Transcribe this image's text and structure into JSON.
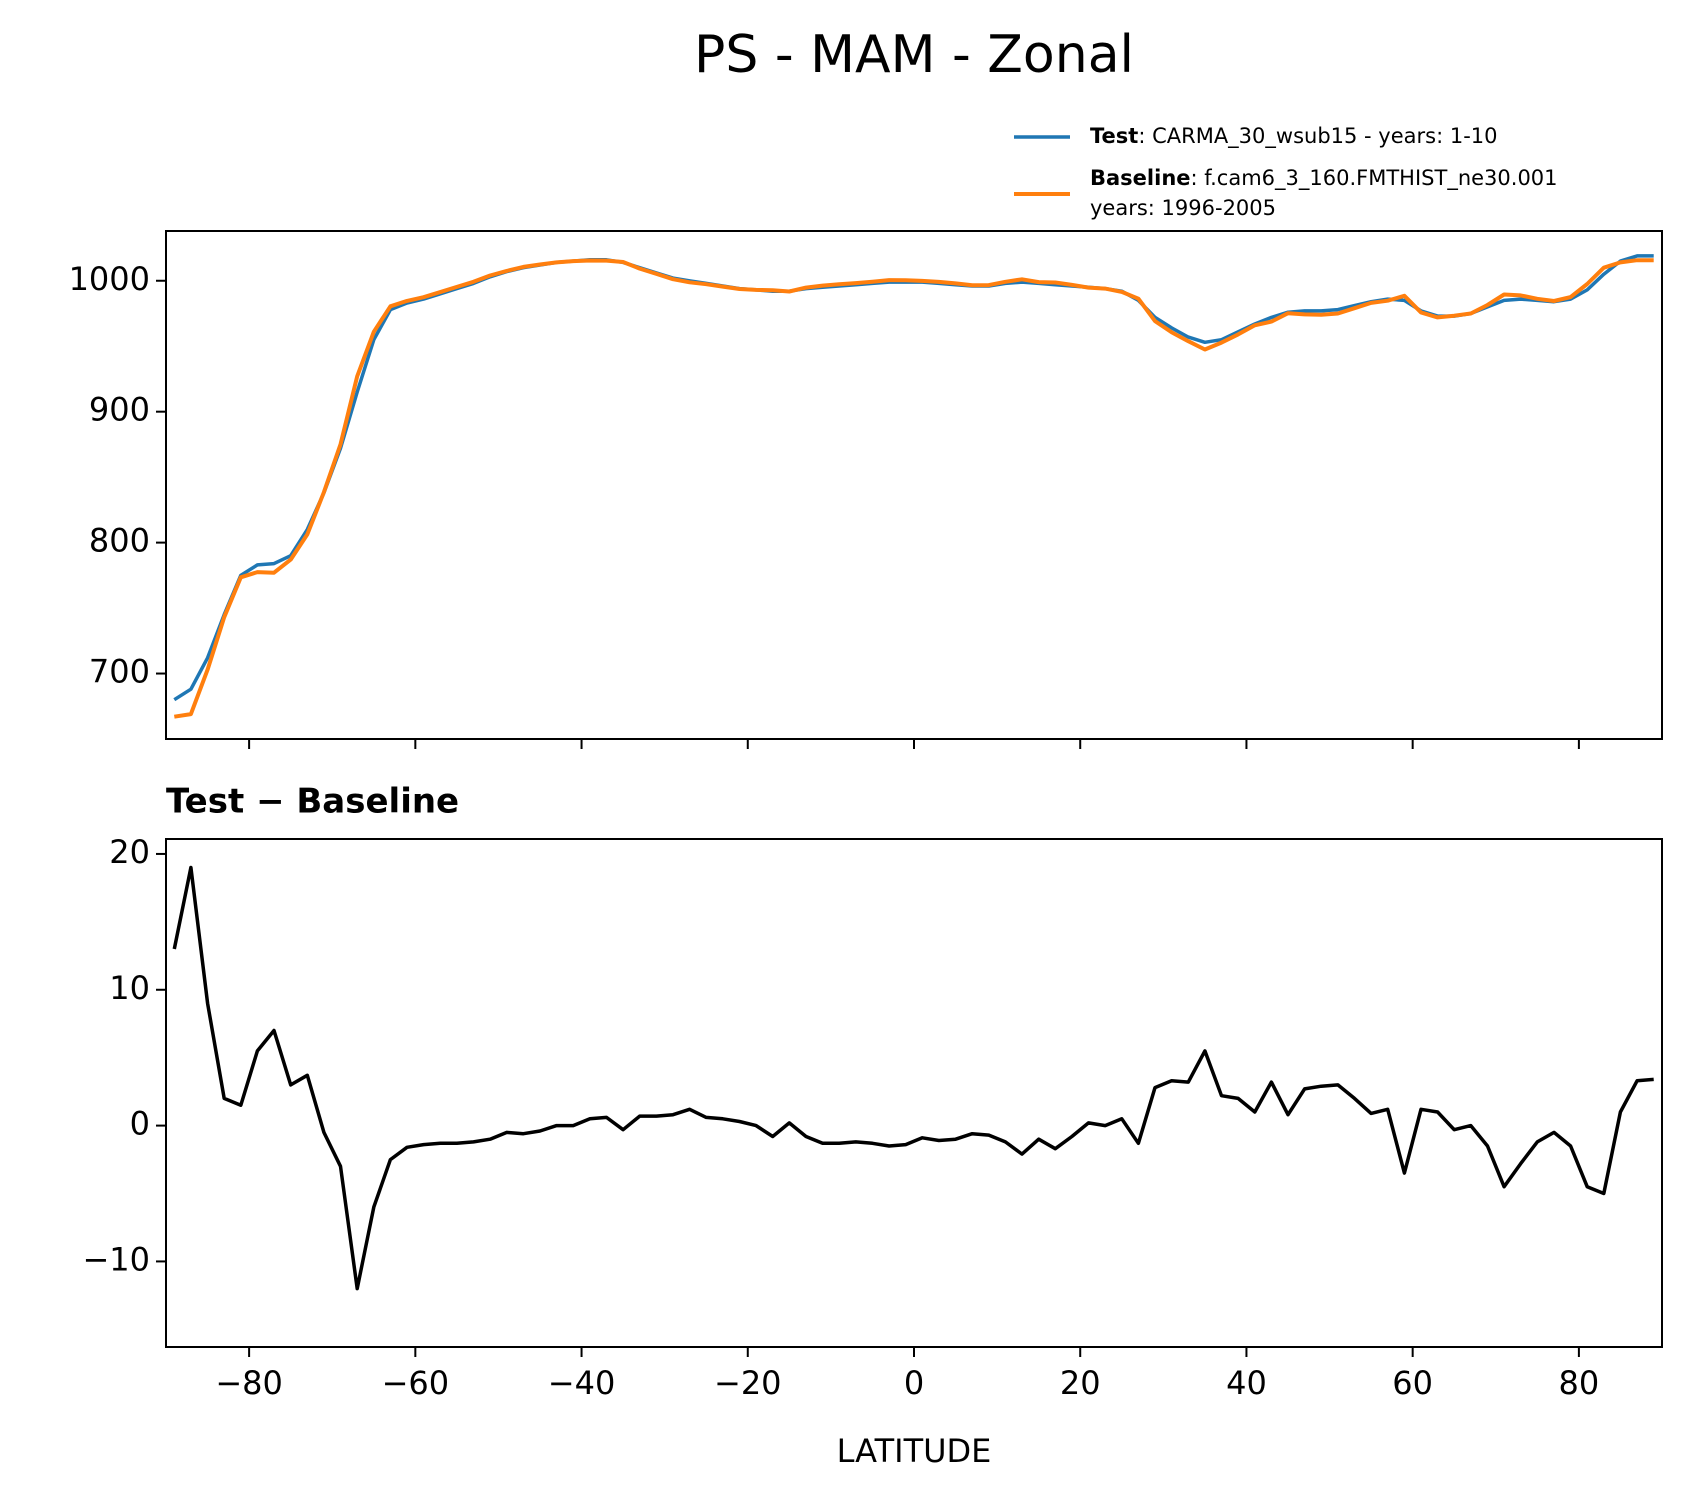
{
  "title": "PS - MAM - Zonal",
  "chart_data": [
    {
      "type": "line",
      "x": [
        -89,
        -87,
        -85,
        -83,
        -81,
        -79,
        -77,
        -75,
        -73,
        -71,
        -69,
        -67,
        -65,
        -63,
        -61,
        -59,
        -57,
        -55,
        -53,
        -51,
        -49,
        -47,
        -45,
        -43,
        -41,
        -39,
        -37,
        -35,
        -33,
        -31,
        -29,
        -27,
        -25,
        -23,
        -21,
        -19,
        -17,
        -15,
        -13,
        -11,
        -9,
        -7,
        -5,
        -3,
        -1,
        1,
        3,
        5,
        7,
        9,
        11,
        13,
        15,
        17,
        19,
        21,
        23,
        25,
        27,
        29,
        31,
        33,
        35,
        37,
        39,
        41,
        43,
        45,
        47,
        49,
        51,
        53,
        55,
        57,
        59,
        61,
        63,
        65,
        67,
        69,
        71,
        73,
        75,
        77,
        79,
        81,
        83,
        85,
        87,
        89
      ],
      "series": [
        {
          "name": "Test",
          "detail": [
            ": CARMA_30_wsub15 - years: 1-10"
          ],
          "color": "#1f77b4",
          "values": [
            680,
            688,
            712,
            745,
            775,
            783,
            784,
            790,
            810,
            838,
            872,
            915,
            955,
            978,
            983,
            986,
            990,
            994,
            998,
            1003,
            1007,
            1010,
            1012,
            1014,
            1015,
            1016,
            1016,
            1014,
            1010,
            1006,
            1002,
            1000,
            998,
            996,
            994,
            993,
            992,
            992,
            994,
            995,
            996,
            997,
            998,
            999,
            999,
            999,
            998,
            997,
            996,
            996,
            998,
            999,
            998,
            997,
            996,
            995,
            994,
            992,
            985,
            972,
            964,
            957,
            953,
            955,
            961,
            967,
            972,
            976,
            977,
            977,
            978,
            981,
            984,
            986,
            985,
            977,
            973,
            973,
            975,
            980,
            985,
            986,
            985,
            984,
            986,
            993,
            1005,
            1015,
            1019,
            1019
          ]
        },
        {
          "name": "Baseline",
          "detail": [
            ": f.cam6_3_160.FMTHIST_ne30.001",
            "years: 1996-2005"
          ],
          "color": "#ff7f0e",
          "values": [
            667,
            669,
            703,
            743,
            773.5,
            777.5,
            777,
            787,
            806.3,
            838.5,
            875,
            927,
            961,
            980.5,
            984.6,
            987.4,
            991.3,
            995.3,
            999.2,
            1004,
            1007.5,
            1010.6,
            1012.4,
            1014,
            1015,
            1015.5,
            1015.4,
            1014.3,
            1009.3,
            1005.3,
            1001.2,
            998.8,
            997.4,
            995.5,
            993.7,
            993,
            992.8,
            991.8,
            994.8,
            996.3,
            997.3,
            998.2,
            999.3,
            1000.5,
            1000.4,
            999.9,
            999.1,
            998,
            996.6,
            996.7,
            999.2,
            1001.1,
            999,
            998.7,
            996.8,
            994.8,
            994,
            991.5,
            986.3,
            969.2,
            960.7,
            953.8,
            947.5,
            952.8,
            959,
            966,
            968.8,
            975.2,
            974.3,
            974.1,
            975,
            979,
            983.1,
            984.8,
            988.5,
            975.8,
            972,
            973.3,
            975,
            981.5,
            989.5,
            988.8,
            986.2,
            984.5,
            987.5,
            997.5,
            1010,
            1014,
            1015.7,
            1015.6
          ]
        }
      ],
      "xlim": [
        -90,
        90
      ],
      "ylim": [
        650,
        1038
      ],
      "yticks": [
        700,
        800,
        900,
        1000
      ]
    },
    {
      "type": "line",
      "title": "Test − Baseline",
      "xlabel": "LATITUDE",
      "x": [
        -89,
        -87,
        -85,
        -83,
        -81,
        -79,
        -77,
        -75,
        -73,
        -71,
        -69,
        -67,
        -65,
        -63,
        -61,
        -59,
        -57,
        -55,
        -53,
        -51,
        -49,
        -47,
        -45,
        -43,
        -41,
        -39,
        -37,
        -35,
        -33,
        -31,
        -29,
        -27,
        -25,
        -23,
        -21,
        -19,
        -17,
        -15,
        -13,
        -11,
        -9,
        -7,
        -5,
        -3,
        -1,
        1,
        3,
        5,
        7,
        9,
        11,
        13,
        15,
        17,
        19,
        21,
        23,
        25,
        27,
        29,
        31,
        33,
        35,
        37,
        39,
        41,
        43,
        45,
        47,
        49,
        51,
        53,
        55,
        57,
        59,
        61,
        63,
        65,
        67,
        69,
        71,
        73,
        75,
        77,
        79,
        81,
        83,
        85,
        87,
        89
      ],
      "series": [
        {
          "color": "#000000",
          "values": [
            13,
            19,
            9,
            2,
            1.5,
            5.5,
            7,
            3,
            3.7,
            -0.5,
            -3,
            -12,
            -6,
            -2.5,
            -1.6,
            -1.4,
            -1.3,
            -1.3,
            -1.2,
            -1,
            -0.5,
            -0.6,
            -0.4,
            0,
            0,
            0.5,
            0.6,
            -0.3,
            0.7,
            0.7,
            0.8,
            1.2,
            0.6,
            0.5,
            0.3,
            0,
            -0.8,
            0.2,
            -0.8,
            -1.3,
            -1.3,
            -1.2,
            -1.3,
            -1.5,
            -1.4,
            -0.9,
            -1.1,
            -1,
            -0.6,
            -0.7,
            -1.2,
            -2.1,
            -1,
            -1.7,
            -0.8,
            0.2,
            0,
            0.5,
            -1.3,
            2.8,
            3.3,
            3.2,
            5.5,
            2.2,
            2,
            1,
            3.2,
            0.8,
            2.7,
            2.9,
            3,
            2,
            0.9,
            1.2,
            -3.5,
            1.2,
            1,
            -0.3,
            0,
            -1.5,
            -4.5,
            -2.8,
            -1.2,
            -0.5,
            -1.5,
            -4.5,
            -5,
            1,
            3.3,
            3.4
          ]
        }
      ],
      "xlim": [
        -90,
        90
      ],
      "ylim": [
        -16.3,
        21.1
      ],
      "xticks": [
        {
          "value": -80,
          "label": "−80"
        },
        {
          "value": -60,
          "label": "−60"
        },
        {
          "value": -40,
          "label": "−40"
        },
        {
          "value": -20,
          "label": "−20"
        },
        0,
        20,
        40,
        60,
        80
      ],
      "yticks": [
        {
          "value": -10,
          "label": "−10"
        },
        0,
        10,
        20
      ]
    }
  ]
}
